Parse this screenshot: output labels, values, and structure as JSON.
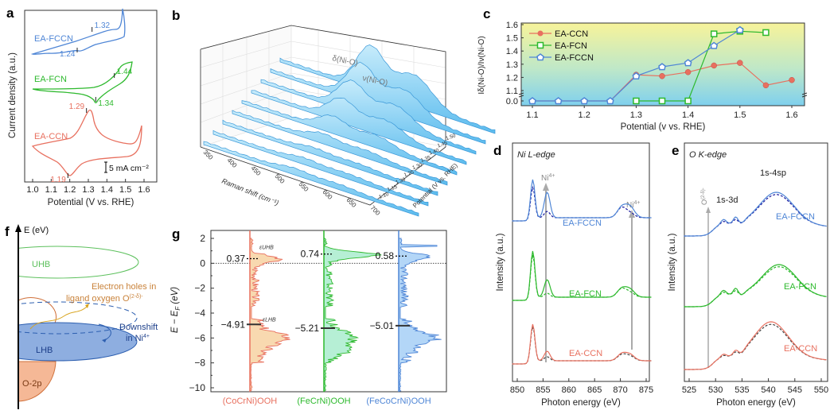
{
  "colors": {
    "ccn": "#e8705f",
    "fcn": "#2db92d",
    "fccn": "#4f86d6",
    "dashed_fccn": "#1a1aa0",
    "gray": "#8a8a8a",
    "orange_text": "#c9823a",
    "uhb": "#5cc05c",
    "lhb_fill": "#8eaee0",
    "o2p_fill": "#f5b896"
  },
  "chart_data": [
    {
      "panel": "a",
      "type": "line",
      "title": "",
      "xlabel": "Potential (V vs. RHE)",
      "ylabel": "Current density (a.u.)",
      "xlim": [
        1.0,
        1.6
      ],
      "xticks": [
        "1.0",
        "1.1",
        "1.2",
        "1.3",
        "1.4",
        "1.5",
        "1.6"
      ],
      "scale_bar": "5 mA cm⁻²",
      "series": [
        {
          "name": "EA-FCCN",
          "peaks": [
            {
              "label": "1.32",
              "x": 1.32,
              "type": "anodic"
            },
            {
              "label": "1.24",
              "x": 1.24,
              "type": "cathodic"
            }
          ]
        },
        {
          "name": "EA-FCN",
          "peaks": [
            {
              "label": "1.44",
              "x": 1.44,
              "type": "anodic"
            },
            {
              "label": "1.34",
              "x": 1.34,
              "type": "cathodic"
            }
          ]
        },
        {
          "name": "EA-CCN",
          "peaks": [
            {
              "label": "1.29",
              "x": 1.29,
              "type": "anodic"
            },
            {
              "label": "1.19",
              "x": 1.19,
              "type": "cathodic"
            }
          ]
        }
      ]
    },
    {
      "panel": "b",
      "type": "area",
      "title": "",
      "xlabel": "Raman shift (cm⁻¹)",
      "ylabel": "Potential (V vs. RHE)",
      "xticks": [
        "350",
        "400",
        "450",
        "500",
        "550",
        "600",
        "650",
        "700"
      ],
      "yticks": [
        "1.10",
        "1.15",
        "1.20",
        "1.25",
        "1.30",
        "1.35",
        "1.40",
        "1.45",
        "1.50"
      ],
      "annotations": [
        "δ(Ni-O)",
        "ν(Ni-O)"
      ],
      "peak_positions_cm": {
        "delta": 475,
        "nu": 555
      }
    },
    {
      "panel": "c",
      "type": "line",
      "title": "",
      "xlabel": "Potential (v vs. RHE)",
      "ylabel": "Iδ(Ni-O)/Iν(Ni-O)",
      "xlim": [
        1.08,
        1.62
      ],
      "xticks": [
        "1.1",
        "1.2",
        "1.3",
        "1.4",
        "1.5",
        "1.6"
      ],
      "yticks": [
        "0.0",
        "1.1",
        "1.2",
        "1.3",
        "1.4",
        "1.5",
        "1.6"
      ],
      "y_axis_break": [
        0.0,
        1.1
      ],
      "legend_position": "top-left",
      "x": [
        1.1,
        1.15,
        1.2,
        1.25,
        1.3,
        1.35,
        1.4,
        1.45,
        1.5,
        1.55,
        1.6
      ],
      "series": [
        {
          "name": "EA-CCN",
          "marker": "circle",
          "values": [
            0,
            0,
            0,
            0,
            1.22,
            1.21,
            1.24,
            1.29,
            1.31,
            1.14,
            1.18
          ]
        },
        {
          "name": "EA-FCN",
          "marker": "square",
          "values": [
            null,
            null,
            null,
            null,
            0,
            0,
            0,
            1.53,
            1.55,
            1.54,
            null
          ]
        },
        {
          "name": "EA-FCCN",
          "marker": "pentagon",
          "values": [
            0,
            0,
            0,
            0,
            1.21,
            1.28,
            1.31,
            1.44,
            1.56,
            null,
            null
          ]
        }
      ]
    },
    {
      "panel": "d",
      "type": "line",
      "title": "Ni L-edge",
      "xlabel": "Photon energy (eV)",
      "ylabel": "Intensity (a.u.)",
      "xlim": [
        849,
        876
      ],
      "xticks": [
        "850",
        "855",
        "860",
        "865",
        "870",
        "875"
      ],
      "annotations": [
        {
          "text": "Ni4+",
          "x": 855.7
        },
        {
          "text": "Ni4+",
          "x": 872.5
        }
      ],
      "series": [
        {
          "name": "EA-FCCN"
        },
        {
          "name": "EA-FCN"
        },
        {
          "name": "EA-CCN"
        }
      ]
    },
    {
      "panel": "e",
      "type": "line",
      "title": "O K-edge",
      "xlabel": "Photon energy (eV)",
      "ylabel": "Intensity (a.u.)",
      "xlim": [
        524,
        551
      ],
      "xticks": [
        "525",
        "530",
        "535",
        "540",
        "545",
        "550"
      ],
      "annotations": [
        {
          "text": "O(2-δ)-",
          "x": 528.7
        },
        {
          "text": "1s-3d",
          "x": 533
        },
        {
          "text": "1s-4sp",
          "x": 541
        }
      ],
      "series": [
        {
          "name": "EA-FCCN"
        },
        {
          "name": "EA-FCN"
        },
        {
          "name": "EA-CCN"
        }
      ]
    },
    {
      "panel": "g",
      "type": "area",
      "title": "",
      "ylabel": "E − E_F (eV)",
      "ylim": [
        -10.5,
        2.5
      ],
      "yticks": [
        "2",
        "0",
        "−2",
        "−4",
        "−6",
        "−8",
        "−10"
      ],
      "series": [
        {
          "name": "(CoCrNi)OOH",
          "e_uhb": 0.37,
          "e_lhb": -4.91,
          "uhb_label": "0.37",
          "lhb_label": "−4.91"
        },
        {
          "name": "(FeCrNi)OOH",
          "e_uhb": 0.74,
          "e_lhb": -5.21,
          "uhb_label": "0.74",
          "lhb_label": "−5.21"
        },
        {
          "name": "(FeCoCrNi)OOH",
          "e_uhb": 0.58,
          "e_lhb": -5.01,
          "uhb_label": "0.58",
          "lhb_label": "−5.01"
        }
      ],
      "annotations": [
        "εUHB",
        "εLHB"
      ]
    }
  ],
  "panel_f": {
    "axis_label": "E (eV)",
    "bands": [
      "UHB",
      "LHB",
      "O-2p"
    ],
    "annotation_holes": [
      "Electron holes in",
      "ligand oxygen O"
    ],
    "annotation_holes_sup": "(2-δ)-",
    "annotation_shift": [
      "Downshift",
      "in Ni"
    ],
    "annotation_shift_sup": "4+"
  },
  "panel_labels": [
    "a",
    "b",
    "c",
    "d",
    "e",
    "f",
    "g"
  ]
}
